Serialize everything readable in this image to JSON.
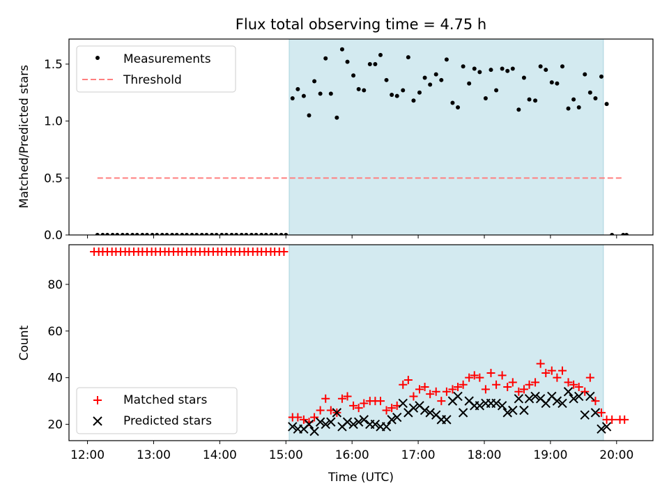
{
  "figure": {
    "title": "Flux total observing time = 4.75 h",
    "shade_color": "#d3eaf0",
    "shade_edge": "#a9d3de"
  },
  "chart_data": [
    {
      "type": "scatter",
      "ylabel": "Matched/Predicted stars",
      "x_unit": "hours UTC",
      "xlim": [
        11.72,
        20.55
      ],
      "ylim": [
        0.0,
        1.72
      ],
      "yticks": [
        0.0,
        0.5,
        1.0,
        1.5
      ],
      "ytick_labels": [
        "0.0",
        "0.5",
        "1.0",
        "1.5"
      ],
      "shaded_region": [
        15.05,
        19.8
      ],
      "threshold": {
        "value": 0.5,
        "x_range": [
          12.15,
          20.1
        ],
        "color": "#ff7f7f"
      },
      "legend": {
        "position": "upper-left",
        "items": [
          "Measurements",
          "Threshold"
        ]
      },
      "series": [
        {
          "name": "Measurements",
          "color": "#000000",
          "marker": "dot",
          "points": [
            [
              12.15,
              0
            ],
            [
              12.23,
              0
            ],
            [
              12.3,
              0
            ],
            [
              12.38,
              0
            ],
            [
              12.45,
              0
            ],
            [
              12.53,
              0
            ],
            [
              12.6,
              0
            ],
            [
              12.68,
              0
            ],
            [
              12.75,
              0
            ],
            [
              12.83,
              0
            ],
            [
              12.9,
              0
            ],
            [
              12.98,
              0
            ],
            [
              13.05,
              0
            ],
            [
              13.13,
              0
            ],
            [
              13.2,
              0
            ],
            [
              13.28,
              0
            ],
            [
              13.35,
              0
            ],
            [
              13.43,
              0
            ],
            [
              13.5,
              0
            ],
            [
              13.58,
              0
            ],
            [
              13.65,
              0
            ],
            [
              13.73,
              0
            ],
            [
              13.8,
              0
            ],
            [
              13.88,
              0
            ],
            [
              13.95,
              0
            ],
            [
              14.03,
              0
            ],
            [
              14.1,
              0
            ],
            [
              14.18,
              0
            ],
            [
              14.25,
              0
            ],
            [
              14.33,
              0
            ],
            [
              14.4,
              0
            ],
            [
              14.48,
              0
            ],
            [
              14.55,
              0
            ],
            [
              14.63,
              0
            ],
            [
              14.7,
              0
            ],
            [
              14.78,
              0
            ],
            [
              14.85,
              0
            ],
            [
              14.93,
              0
            ],
            [
              15.0,
              0
            ],
            [
              15.1,
              1.2
            ],
            [
              15.18,
              1.28
            ],
            [
              15.27,
              1.22
            ],
            [
              15.35,
              1.05
            ],
            [
              15.43,
              1.35
            ],
            [
              15.52,
              1.24
            ],
            [
              15.6,
              1.55
            ],
            [
              15.68,
              1.24
            ],
            [
              15.77,
              1.03
            ],
            [
              15.85,
              1.63
            ],
            [
              15.93,
              1.52
            ],
            [
              16.02,
              1.4
            ],
            [
              16.1,
              1.28
            ],
            [
              16.18,
              1.27
            ],
            [
              16.27,
              1.5
            ],
            [
              16.35,
              1.5
            ],
            [
              16.43,
              1.58
            ],
            [
              16.52,
              1.36
            ],
            [
              16.6,
              1.23
            ],
            [
              16.68,
              1.22
            ],
            [
              16.77,
              1.27
            ],
            [
              16.85,
              1.56
            ],
            [
              16.93,
              1.18
            ],
            [
              17.02,
              1.25
            ],
            [
              17.1,
              1.38
            ],
            [
              17.18,
              1.32
            ],
            [
              17.27,
              1.41
            ],
            [
              17.35,
              1.36
            ],
            [
              17.43,
              1.54
            ],
            [
              17.52,
              1.16
            ],
            [
              17.6,
              1.12
            ],
            [
              17.68,
              1.48
            ],
            [
              17.77,
              1.33
            ],
            [
              17.85,
              1.46
            ],
            [
              17.93,
              1.43
            ],
            [
              18.02,
              1.2
            ],
            [
              18.1,
              1.45
            ],
            [
              18.18,
              1.27
            ],
            [
              18.27,
              1.46
            ],
            [
              18.35,
              1.44
            ],
            [
              18.43,
              1.46
            ],
            [
              18.52,
              1.1
            ],
            [
              18.6,
              1.38
            ],
            [
              18.68,
              1.19
            ],
            [
              18.77,
              1.18
            ],
            [
              18.85,
              1.48
            ],
            [
              18.93,
              1.45
            ],
            [
              19.02,
              1.34
            ],
            [
              19.1,
              1.33
            ],
            [
              19.18,
              1.48
            ],
            [
              19.27,
              1.11
            ],
            [
              19.35,
              1.19
            ],
            [
              19.43,
              1.12
            ],
            [
              19.52,
              1.41
            ],
            [
              19.6,
              1.25
            ],
            [
              19.68,
              1.2
            ],
            [
              19.77,
              1.39
            ],
            [
              19.85,
              1.15
            ],
            [
              19.93,
              0
            ],
            [
              20.1,
              0
            ],
            [
              20.15,
              0
            ]
          ]
        }
      ]
    },
    {
      "type": "scatter",
      "xlabel": "Time (UTC)",
      "ylabel": "Count",
      "x_unit": "hours UTC",
      "xlim": [
        11.72,
        20.55
      ],
      "ylim": [
        13.0,
        97.0
      ],
      "yticks": [
        20,
        40,
        60,
        80
      ],
      "ytick_labels": [
        "20",
        "40",
        "60",
        "80"
      ],
      "xticks": [
        12,
        13,
        14,
        15,
        16,
        17,
        18,
        19,
        20
      ],
      "xtick_labels": [
        "12:00",
        "13:00",
        "14:00",
        "15:00",
        "16:00",
        "17:00",
        "18:00",
        "19:00",
        "20:00"
      ],
      "shaded_region": [
        15.05,
        19.8
      ],
      "legend": {
        "position": "lower-left",
        "items": [
          "Matched stars",
          "Predicted stars"
        ]
      },
      "series": [
        {
          "name": "Matched stars",
          "color": "#ff0000",
          "marker": "plus",
          "points": [
            [
              12.1,
              94
            ],
            [
              12.17,
              94
            ],
            [
              12.23,
              94
            ],
            [
              12.3,
              94
            ],
            [
              12.37,
              94
            ],
            [
              12.43,
              94
            ],
            [
              12.5,
              94
            ],
            [
              12.57,
              94
            ],
            [
              12.63,
              94
            ],
            [
              12.7,
              94
            ],
            [
              12.77,
              94
            ],
            [
              12.83,
              94
            ],
            [
              12.9,
              94
            ],
            [
              12.97,
              94
            ],
            [
              13.03,
              94
            ],
            [
              13.1,
              94
            ],
            [
              13.17,
              94
            ],
            [
              13.23,
              94
            ],
            [
              13.3,
              94
            ],
            [
              13.37,
              94
            ],
            [
              13.43,
              94
            ],
            [
              13.5,
              94
            ],
            [
              13.57,
              94
            ],
            [
              13.63,
              94
            ],
            [
              13.7,
              94
            ],
            [
              13.77,
              94
            ],
            [
              13.83,
              94
            ],
            [
              13.9,
              94
            ],
            [
              13.97,
              94
            ],
            [
              14.03,
              94
            ],
            [
              14.1,
              94
            ],
            [
              14.17,
              94
            ],
            [
              14.23,
              94
            ],
            [
              14.3,
              94
            ],
            [
              14.37,
              94
            ],
            [
              14.43,
              94
            ],
            [
              14.5,
              94
            ],
            [
              14.57,
              94
            ],
            [
              14.63,
              94
            ],
            [
              14.7,
              94
            ],
            [
              14.77,
              94
            ],
            [
              14.83,
              94
            ],
            [
              14.9,
              94
            ],
            [
              14.97,
              94
            ],
            [
              15.1,
              23
            ],
            [
              15.18,
              23
            ],
            [
              15.27,
              22
            ],
            [
              15.35,
              21
            ],
            [
              15.43,
              23
            ],
            [
              15.52,
              26
            ],
            [
              15.6,
              31
            ],
            [
              15.68,
              26
            ],
            [
              15.77,
              25
            ],
            [
              15.85,
              31
            ],
            [
              15.93,
              32
            ],
            [
              16.02,
              28
            ],
            [
              16.1,
              27
            ],
            [
              16.18,
              29
            ],
            [
              16.27,
              30
            ],
            [
              16.35,
              30
            ],
            [
              16.43,
              30
            ],
            [
              16.52,
              26
            ],
            [
              16.6,
              27
            ],
            [
              16.68,
              28
            ],
            [
              16.77,
              37
            ],
            [
              16.85,
              39
            ],
            [
              16.93,
              32
            ],
            [
              17.02,
              35
            ],
            [
              17.1,
              36
            ],
            [
              17.18,
              33
            ],
            [
              17.27,
              34
            ],
            [
              17.35,
              30
            ],
            [
              17.43,
              34
            ],
            [
              17.52,
              35
            ],
            [
              17.6,
              36
            ],
            [
              17.68,
              37
            ],
            [
              17.77,
              40
            ],
            [
              17.85,
              41
            ],
            [
              17.93,
              40
            ],
            [
              18.02,
              35
            ],
            [
              18.1,
              42
            ],
            [
              18.18,
              37
            ],
            [
              18.27,
              41
            ],
            [
              18.35,
              36
            ],
            [
              18.43,
              38
            ],
            [
              18.52,
              34
            ],
            [
              18.6,
              35
            ],
            [
              18.68,
              37
            ],
            [
              18.77,
              38
            ],
            [
              18.85,
              46
            ],
            [
              18.93,
              42
            ],
            [
              19.02,
              43
            ],
            [
              19.1,
              40
            ],
            [
              19.18,
              43
            ],
            [
              19.27,
              38
            ],
            [
              19.35,
              37
            ],
            [
              19.43,
              36
            ],
            [
              19.52,
              34
            ],
            [
              19.6,
              40
            ],
            [
              19.68,
              30
            ],
            [
              19.77,
              25
            ],
            [
              19.85,
              22
            ],
            [
              19.93,
              22
            ],
            [
              20.05,
              22
            ],
            [
              20.12,
              22
            ]
          ]
        },
        {
          "name": "Predicted stars",
          "color": "#000000",
          "marker": "x",
          "points": [
            [
              15.1,
              19
            ],
            [
              15.18,
              18
            ],
            [
              15.27,
              18
            ],
            [
              15.35,
              20
            ],
            [
              15.43,
              17
            ],
            [
              15.52,
              21
            ],
            [
              15.6,
              20
            ],
            [
              15.68,
              21
            ],
            [
              15.77,
              25
            ],
            [
              15.85,
              19
            ],
            [
              15.93,
              21
            ],
            [
              16.02,
              20
            ],
            [
              16.1,
              21
            ],
            [
              16.18,
              22
            ],
            [
              16.27,
              20
            ],
            [
              16.35,
              20
            ],
            [
              16.43,
              19
            ],
            [
              16.52,
              19
            ],
            [
              16.6,
              22
            ],
            [
              16.68,
              23
            ],
            [
              16.77,
              29
            ],
            [
              16.85,
              25
            ],
            [
              16.93,
              27
            ],
            [
              17.02,
              28
            ],
            [
              17.1,
              26
            ],
            [
              17.18,
              25
            ],
            [
              17.27,
              24
            ],
            [
              17.35,
              22
            ],
            [
              17.43,
              22
            ],
            [
              17.52,
              30
            ],
            [
              17.6,
              32
            ],
            [
              17.68,
              25
            ],
            [
              17.77,
              30
            ],
            [
              17.85,
              28
            ],
            [
              17.93,
              28
            ],
            [
              18.02,
              29
            ],
            [
              18.1,
              29
            ],
            [
              18.18,
              29
            ],
            [
              18.27,
              28
            ],
            [
              18.35,
              25
            ],
            [
              18.43,
              26
            ],
            [
              18.52,
              31
            ],
            [
              18.6,
              26
            ],
            [
              18.68,
              31
            ],
            [
              18.77,
              32
            ],
            [
              18.85,
              31
            ],
            [
              18.93,
              29
            ],
            [
              19.02,
              32
            ],
            [
              19.1,
              30
            ],
            [
              19.18,
              29
            ],
            [
              19.27,
              34
            ],
            [
              19.35,
              31
            ],
            [
              19.43,
              32
            ],
            [
              19.52,
              24
            ],
            [
              19.6,
              32
            ],
            [
              19.68,
              25
            ],
            [
              19.77,
              18
            ],
            [
              19.85,
              19
            ]
          ]
        }
      ]
    }
  ]
}
